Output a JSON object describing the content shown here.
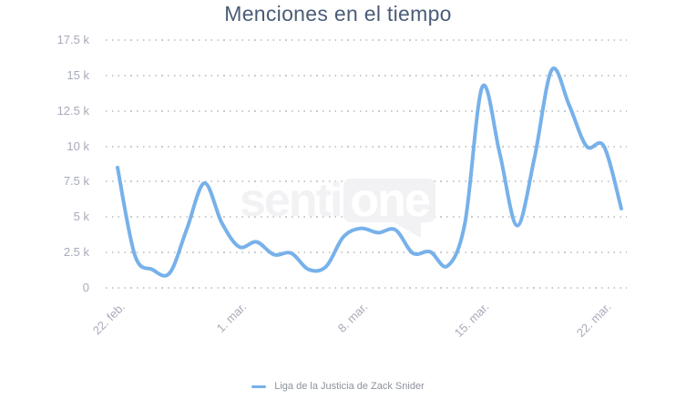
{
  "watermark": {
    "part1": "senti",
    "part2": "one"
  },
  "colors": {
    "line": "#77b1ea",
    "title": "#4a5c77",
    "axis_labels": "#a8aaba",
    "grid_dots": "#c9cace",
    "legend_text": "#8d929c",
    "watermark": "#f2f2f4"
  },
  "chart_data": {
    "type": "line",
    "title": "Menciones en el tiempo",
    "xlabel": "",
    "ylabel": "",
    "ylim": [
      0,
      17500
    ],
    "grid": "dotted-horizontal",
    "legend_position": "bottom",
    "x": [
      "22 feb",
      "23 feb",
      "24 feb",
      "25 feb",
      "26 feb",
      "27 feb",
      "28 feb",
      "1 mar",
      "2 mar",
      "3 mar",
      "4 mar",
      "5 mar",
      "6 mar",
      "7 mar",
      "8 mar",
      "9 mar",
      "10 mar",
      "11 mar",
      "12 mar",
      "13 mar",
      "14 mar",
      "15 mar",
      "16 mar",
      "17 mar",
      "18 mar",
      "19 mar",
      "20 mar",
      "21 mar",
      "22 mar",
      "23 mar"
    ],
    "series": [
      {
        "name": "Liga de la Justicia de Zack Snider",
        "color": "#77b1ea",
        "values": [
          8500,
          2300,
          1300,
          1050,
          4200,
          7400,
          4600,
          2900,
          3250,
          2350,
          2450,
          1300,
          1500,
          3600,
          4200,
          3900,
          4100,
          2450,
          2550,
          1550,
          4600,
          14200,
          9500,
          4400,
          9200,
          15400,
          12900,
          10000,
          10000,
          5600
        ]
      }
    ],
    "y_ticks": [
      {
        "value": 0,
        "label": "0"
      },
      {
        "value": 2500,
        "label": "2.5 k"
      },
      {
        "value": 5000,
        "label": "5 k"
      },
      {
        "value": 7500,
        "label": "7.5 k"
      },
      {
        "value": 10000,
        "label": "10 k"
      },
      {
        "value": 12500,
        "label": "12.5 k"
      },
      {
        "value": 15000,
        "label": "15 k"
      },
      {
        "value": 17500,
        "label": "17.5 k"
      }
    ],
    "x_ticks": [
      {
        "index": 0,
        "label": "22. feb."
      },
      {
        "index": 7,
        "label": "1. mar."
      },
      {
        "index": 14,
        "label": "8. mar."
      },
      {
        "index": 21,
        "label": "15. mar."
      },
      {
        "index": 28,
        "label": "22. mar."
      }
    ]
  }
}
